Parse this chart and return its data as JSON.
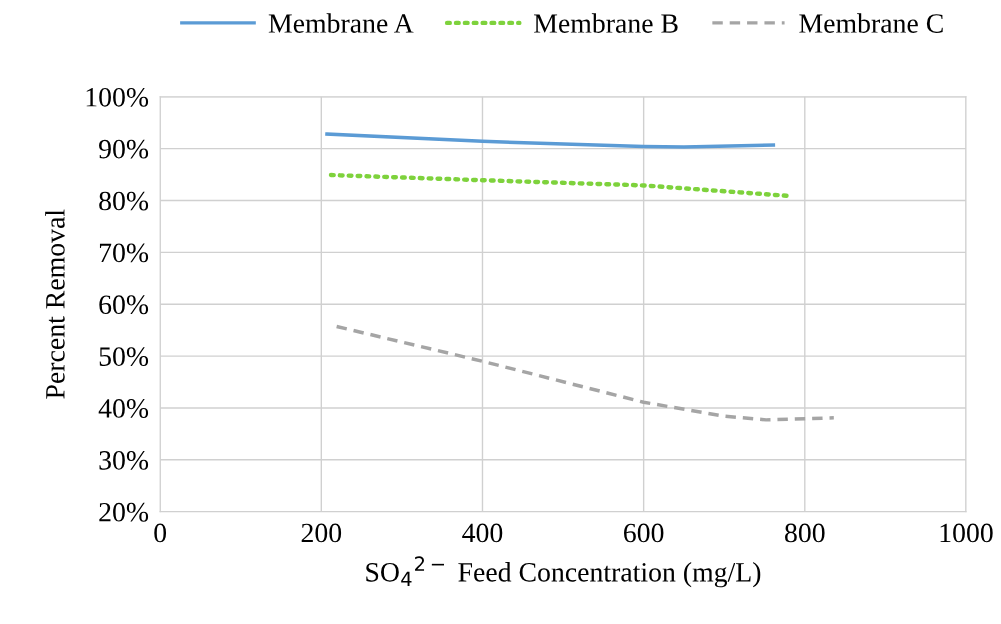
{
  "chart_data": {
    "type": "line",
    "xlabel": "SO$_{4}$$^{2−}$ Feed Concentration (mg/L)",
    "ylabel": "Percent Removal",
    "xlim": [
      0,
      1000
    ],
    "xticks": [
      0,
      200,
      400,
      600,
      800,
      1000
    ],
    "ylim": [
      20,
      100
    ],
    "yticks": [
      {
        "value": 20,
        "label": "20%"
      },
      {
        "value": 30,
        "label": "30%"
      },
      {
        "value": 40,
        "label": "40%"
      },
      {
        "value": 50,
        "label": "50%"
      },
      {
        "value": 60,
        "label": "60%"
      },
      {
        "value": 70,
        "label": "70%"
      },
      {
        "value": 80,
        "label": "80%"
      },
      {
        "value": 90,
        "label": "90%"
      },
      {
        "value": 100,
        "label": "100%"
      }
    ],
    "grid": true,
    "legend": "top",
    "series": [
      {
        "name": "Membrane A",
        "color": "#5b9bd5",
        "line_style": "solid",
        "x": [
          207,
          400,
          600,
          650,
          761
        ],
        "values": [
          92.8,
          91.4,
          90.4,
          90.3,
          90.7
        ]
      },
      {
        "name": "Membrane B",
        "color": "#7ed23c",
        "line_style": "dotted",
        "x": [
          212,
          400,
          600,
          778
        ],
        "values": [
          84.9,
          83.9,
          82.9,
          80.9
        ]
      },
      {
        "name": "Membrane C",
        "color": "#a5a5a5",
        "line_style": "dashed",
        "x": [
          219,
          400,
          600,
          700,
          752,
          836
        ],
        "values": [
          55.7,
          49.0,
          41.1,
          38.4,
          37.7,
          38.1
        ]
      }
    ]
  }
}
